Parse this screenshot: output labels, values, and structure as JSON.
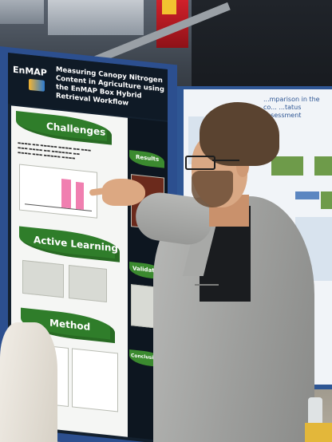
{
  "poster_left": {
    "brand": "EnMAP",
    "title": "Measuring Canopy Nitrogen Content in Agriculture using the EnMAP Box Hybrid Retrieval Workflow",
    "sections": [
      "Challenges",
      "Active Learning",
      "Method"
    ],
    "side_sections": [
      "Results",
      "Validation",
      "Conclusions"
    ]
  },
  "poster_right": {
    "title": "...mparison in the co... ...tatus assessment"
  },
  "colors": {
    "poster_board": "#2c4f8f",
    "leaf_green": "#2f7d2a",
    "jacket_grey": "#a3a4a2",
    "highlight_pink": "#f07fb0"
  }
}
